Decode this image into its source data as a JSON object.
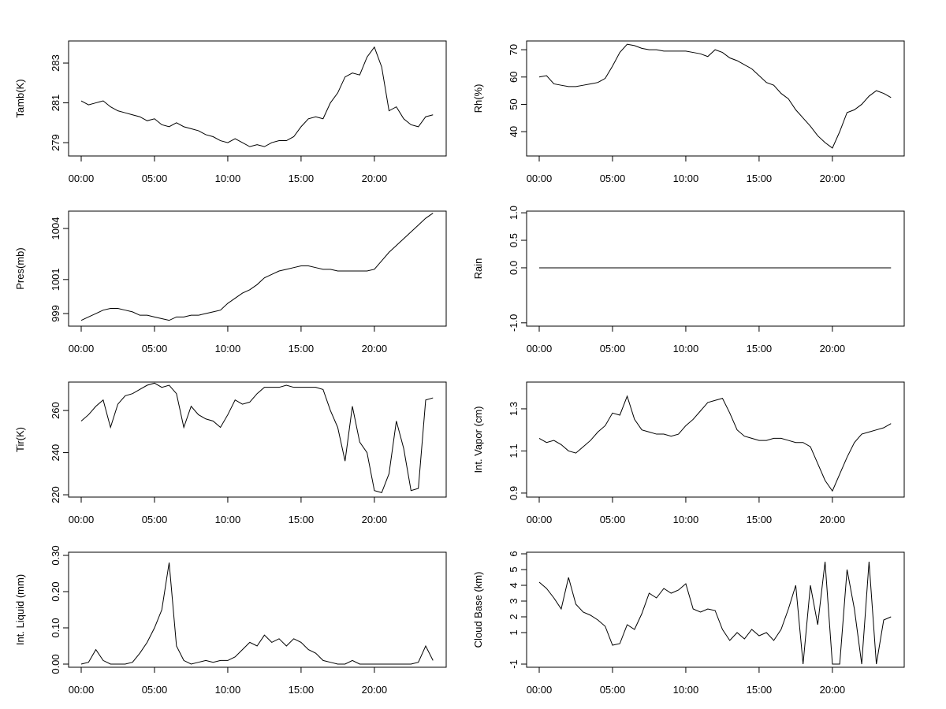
{
  "chart_data": [
    {
      "type": "line",
      "ylabel": "Tamb(K)",
      "color": "#000000",
      "x": [
        0,
        0.5,
        1,
        1.5,
        2,
        2.5,
        3,
        3.5,
        4,
        4.5,
        5,
        5.5,
        6,
        6.5,
        7,
        7.5,
        8,
        8.5,
        9,
        9.5,
        10,
        10.5,
        11,
        11.5,
        12,
        12.5,
        13,
        13.5,
        14,
        14.5,
        15,
        15.5,
        16,
        16.5,
        17,
        17.5,
        18,
        18.5,
        19,
        19.5,
        20,
        20.5,
        21,
        21.5,
        22,
        22.5,
        23,
        23.5,
        24
      ],
      "values": [
        281.1,
        280.9,
        281.0,
        281.1,
        280.8,
        280.6,
        280.5,
        280.4,
        280.3,
        280.1,
        280.2,
        279.9,
        279.8,
        280.0,
        279.8,
        279.7,
        279.6,
        279.4,
        279.3,
        279.1,
        279.0,
        279.2,
        279.0,
        278.8,
        278.9,
        278.8,
        279.0,
        279.1,
        279.1,
        279.3,
        279.8,
        280.2,
        280.3,
        280.2,
        281.0,
        281.5,
        282.3,
        282.5,
        282.4,
        283.3,
        283.8,
        282.8,
        280.6,
        280.8,
        280.2,
        279.9,
        279.8,
        280.3,
        280.4
      ],
      "xlim": [
        -0.86,
        24.9
      ],
      "ylim": [
        278.33,
        284.11
      ],
      "xticks": [
        {
          "value": 0,
          "label": "00:00"
        },
        {
          "value": 5,
          "label": "05:00"
        },
        {
          "value": 10,
          "label": "10:00"
        },
        {
          "value": 15,
          "label": "15:00"
        },
        {
          "value": 20,
          "label": "20:00"
        }
      ],
      "yticks": [
        279,
        281,
        283
      ]
    },
    {
      "type": "line",
      "ylabel": "Rh(%)",
      "color": "#000000",
      "x": [
        0,
        0.5,
        1,
        1.5,
        2,
        2.5,
        3,
        3.5,
        4,
        4.5,
        5,
        5.5,
        6,
        6.5,
        7,
        7.5,
        8,
        8.5,
        9,
        9.5,
        10,
        10.5,
        11,
        11.5,
        12,
        12.5,
        13,
        13.5,
        14,
        14.5,
        15,
        15.5,
        16,
        16.5,
        17,
        17.5,
        18,
        18.5,
        19,
        19.5,
        20,
        20.5,
        21,
        21.5,
        22,
        22.5,
        23,
        23.5,
        24
      ],
      "values": [
        60,
        60.5,
        57.5,
        57,
        56.5,
        56.5,
        57,
        57.5,
        58,
        59.5,
        64,
        69,
        72,
        71.5,
        70.5,
        70,
        70,
        69.5,
        69.5,
        69.5,
        69.5,
        69,
        68.5,
        67.5,
        70,
        69,
        67,
        66,
        64.5,
        63,
        60.5,
        58,
        57,
        54,
        52,
        48,
        45,
        42,
        38.5,
        36,
        34,
        40,
        47,
        48,
        50,
        53,
        55,
        54,
        52.5
      ],
      "xlim": [
        -0.86,
        24.9
      ],
      "ylim": [
        31.1,
        73.2
      ],
      "xticks": [
        {
          "value": 0,
          "label": "00:00"
        },
        {
          "value": 5,
          "label": "05:00"
        },
        {
          "value": 10,
          "label": "10:00"
        },
        {
          "value": 15,
          "label": "15:00"
        },
        {
          "value": 20,
          "label": "20:00"
        }
      ],
      "yticks": [
        40,
        50,
        60,
        70
      ]
    },
    {
      "type": "line",
      "ylabel": "Pres(mb)",
      "color": "#000000",
      "x": [
        0,
        0.5,
        1,
        1.5,
        2,
        2.5,
        3,
        3.5,
        4,
        4.5,
        5,
        5.5,
        6,
        6.5,
        7,
        7.5,
        8,
        8.5,
        9,
        9.5,
        10,
        10.5,
        11,
        11.5,
        12,
        12.5,
        13,
        13.5,
        14,
        14.5,
        15,
        15.5,
        16,
        16.5,
        17,
        17.5,
        18,
        18.5,
        19,
        19.5,
        20,
        20.5,
        21,
        21.5,
        22,
        22.5,
        23,
        23.5,
        24
      ],
      "values": [
        998.6,
        998.8,
        999.0,
        999.2,
        999.3,
        999.3,
        999.2,
        999.1,
        998.9,
        998.9,
        998.8,
        998.7,
        998.6,
        998.8,
        998.8,
        998.9,
        998.9,
        999.0,
        999.1,
        999.2,
        999.6,
        999.9,
        1000.2,
        1000.4,
        1000.7,
        1001.1,
        1001.3,
        1001.5,
        1001.6,
        1001.7,
        1001.8,
        1001.8,
        1001.7,
        1001.6,
        1001.6,
        1001.5,
        1001.5,
        1001.5,
        1001.5,
        1001.5,
        1001.6,
        1002.1,
        1002.6,
        1003.0,
        1003.4,
        1003.8,
        1004.2,
        1004.6,
        1004.9
      ],
      "xlim": [
        -0.86,
        24.9
      ],
      "ylim": [
        998.26,
        1005.02
      ],
      "xticks": [
        {
          "value": 0,
          "label": "00:00"
        },
        {
          "value": 5,
          "label": "05:00"
        },
        {
          "value": 10,
          "label": "10:00"
        },
        {
          "value": 15,
          "label": "15:00"
        },
        {
          "value": 20,
          "label": "20:00"
        }
      ],
      "yticks": [
        999,
        1001,
        1004
      ]
    },
    {
      "type": "line",
      "ylabel": "Rain",
      "color": "#000000",
      "x": [
        0,
        0.5,
        1,
        1.5,
        2,
        2.5,
        3,
        3.5,
        4,
        4.5,
        5,
        5.5,
        6,
        6.5,
        7,
        7.5,
        8,
        8.5,
        9,
        9.5,
        10,
        10.5,
        11,
        11.5,
        12,
        12.5,
        13,
        13.5,
        14,
        14.5,
        15,
        15.5,
        16,
        16.5,
        17,
        17.5,
        18,
        18.5,
        19,
        19.5,
        20,
        20.5,
        21,
        21.5,
        22,
        22.5,
        23,
        23.5,
        24
      ],
      "values": [
        0,
        0,
        0,
        0,
        0,
        0,
        0,
        0,
        0,
        0,
        0,
        0,
        0,
        0,
        0,
        0,
        0,
        0,
        0,
        0,
        0,
        0,
        0,
        0,
        0,
        0,
        0,
        0,
        0,
        0,
        0,
        0,
        0,
        0,
        0,
        0,
        0,
        0,
        0,
        0,
        0,
        0,
        0,
        0,
        0,
        0,
        0,
        0,
        0
      ],
      "xlim": [
        -0.86,
        24.9
      ],
      "ylim": [
        -1.06,
        1.03
      ],
      "xticks": [
        {
          "value": 0,
          "label": "00:00"
        },
        {
          "value": 5,
          "label": "05:00"
        },
        {
          "value": 10,
          "label": "10:00"
        },
        {
          "value": 15,
          "label": "15:00"
        },
        {
          "value": 20,
          "label": "20:00"
        }
      ],
      "yticks": [
        {
          "value": -1,
          "label": "-1.0"
        },
        {
          "value": 0,
          "label": "0.0"
        },
        {
          "value": 0.5,
          "label": "0.5"
        },
        {
          "value": 1,
          "label": "1.0"
        }
      ]
    },
    {
      "type": "line",
      "ylabel": "Tir(K)",
      "color": "#000000",
      "x": [
        0,
        0.5,
        1,
        1.5,
        2,
        2.5,
        3,
        3.5,
        4,
        4.5,
        5,
        5.5,
        6,
        6.5,
        7,
        7.5,
        8,
        8.5,
        9,
        9.5,
        10,
        10.5,
        11,
        11.5,
        12,
        12.5,
        13,
        13.5,
        14,
        14.5,
        15,
        15.5,
        16,
        16.5,
        17,
        17.5,
        18,
        18.5,
        19,
        19.5,
        20,
        20.5,
        21,
        21.5,
        22,
        22.5,
        23,
        23.5,
        24
      ],
      "values": [
        255,
        258,
        262,
        265,
        252,
        263,
        267,
        268,
        270,
        272,
        273,
        271,
        272,
        268,
        252,
        262,
        258,
        256,
        255,
        252,
        258,
        265,
        263,
        264,
        268,
        271,
        271,
        271,
        272,
        271,
        271,
        271,
        271,
        270,
        260,
        252,
        236,
        262,
        245,
        240,
        222,
        221,
        230,
        255,
        242,
        222,
        223,
        265,
        266
      ],
      "xlim": [
        -0.86,
        24.9
      ],
      "ylim": [
        218.9,
        273.5
      ],
      "xticks": [
        {
          "value": 0,
          "label": "00:00"
        },
        {
          "value": 5,
          "label": "05:00"
        },
        {
          "value": 10,
          "label": "10:00"
        },
        {
          "value": 15,
          "label": "15:00"
        },
        {
          "value": 20,
          "label": "20:00"
        }
      ],
      "yticks": [
        220,
        240,
        260
      ]
    },
    {
      "type": "line",
      "ylabel": "Int. Vapor (cm)",
      "color": "#000000",
      "x": [
        0,
        0.5,
        1,
        1.5,
        2,
        2.5,
        3,
        3.5,
        4,
        4.5,
        5,
        5.5,
        6,
        6.5,
        7,
        7.5,
        8,
        8.5,
        9,
        9.5,
        10,
        10.5,
        11,
        11.5,
        12,
        12.5,
        13,
        13.5,
        14,
        14.5,
        15,
        15.5,
        16,
        16.5,
        17,
        17.5,
        18,
        18.5,
        19,
        19.5,
        20,
        20.5,
        21,
        21.5,
        22,
        22.5,
        23,
        23.5,
        24
      ],
      "values": [
        1.16,
        1.14,
        1.15,
        1.13,
        1.1,
        1.09,
        1.12,
        1.15,
        1.19,
        1.22,
        1.28,
        1.27,
        1.36,
        1.25,
        1.2,
        1.19,
        1.18,
        1.18,
        1.17,
        1.18,
        1.22,
        1.25,
        1.29,
        1.33,
        1.34,
        1.35,
        1.28,
        1.2,
        1.17,
        1.16,
        1.15,
        1.15,
        1.16,
        1.16,
        1.15,
        1.14,
        1.14,
        1.12,
        1.04,
        0.96,
        0.91,
        0.99,
        1.07,
        1.14,
        1.18,
        1.19,
        1.2,
        1.21,
        1.23
      ],
      "xlim": [
        -0.86,
        24.9
      ],
      "ylim": [
        0.881,
        1.427
      ],
      "xticks": [
        {
          "value": 0,
          "label": "00:00"
        },
        {
          "value": 5,
          "label": "05:00"
        },
        {
          "value": 10,
          "label": "10:00"
        },
        {
          "value": 15,
          "label": "15:00"
        },
        {
          "value": 20,
          "label": "20:00"
        }
      ],
      "yticks": [
        0.9,
        1.1,
        1.3
      ]
    },
    {
      "type": "line",
      "ylabel": "Int. Liquid (mm)",
      "color": "#000000",
      "x": [
        0,
        0.5,
        1,
        1.5,
        2,
        2.5,
        3,
        3.5,
        4,
        4.5,
        5,
        5.5,
        6,
        6.5,
        7,
        7.5,
        8,
        8.5,
        9,
        9.5,
        10,
        10.5,
        11,
        11.5,
        12,
        12.5,
        13,
        13.5,
        14,
        14.5,
        15,
        15.5,
        16,
        16.5,
        17,
        17.5,
        18,
        18.5,
        19,
        19.5,
        20,
        20.5,
        21,
        21.5,
        22,
        22.5,
        23,
        23.5,
        24
      ],
      "values": [
        0,
        0.005,
        0.04,
        0.01,
        0,
        0,
        0,
        0.005,
        0.03,
        0.06,
        0.1,
        0.15,
        0.28,
        0.05,
        0.01,
        0,
        0.005,
        0.01,
        0.005,
        0.01,
        0.01,
        0.02,
        0.04,
        0.06,
        0.05,
        0.08,
        0.06,
        0.07,
        0.05,
        0.07,
        0.06,
        0.04,
        0.03,
        0.01,
        0.005,
        0,
        0,
        0.01,
        0,
        0,
        0,
        0,
        0,
        0,
        0,
        0,
        0.005,
        0.05,
        0.01
      ],
      "xlim": [
        -0.86,
        24.9
      ],
      "ylim": [
        -0.0087,
        0.3087
      ],
      "xticks": [
        {
          "value": 0,
          "label": "00:00"
        },
        {
          "value": 5,
          "label": "05:00"
        },
        {
          "value": 10,
          "label": "10:00"
        },
        {
          "value": 15,
          "label": "15:00"
        },
        {
          "value": 20,
          "label": "20:00"
        }
      ],
      "yticks": [
        {
          "value": 0,
          "label": "0.00"
        },
        {
          "value": 0.1,
          "label": "0.10"
        },
        {
          "value": 0.2,
          "label": "0.20"
        },
        {
          "value": 0.3,
          "label": "0.30"
        }
      ]
    },
    {
      "type": "line",
      "ylabel": "Cloud Base (km)",
      "color": "#000000",
      "x": [
        0,
        0.5,
        1,
        1.5,
        2,
        2.5,
        3,
        3.5,
        4,
        4.5,
        5,
        5.5,
        6,
        6.5,
        7,
        7.5,
        8,
        8.5,
        9,
        9.5,
        10,
        10.5,
        11,
        11.5,
        12,
        12.5,
        13,
        13.5,
        14,
        14.5,
        15,
        15.5,
        16,
        16.5,
        17,
        17.5,
        18,
        18.5,
        19,
        19.5,
        20,
        20.5,
        21,
        21.5,
        22,
        22.5,
        23,
        23.5,
        24
      ],
      "values": [
        4.2,
        3.8,
        3.2,
        2.5,
        4.5,
        2.8,
        2.3,
        2.1,
        1.8,
        1.4,
        0.2,
        0.3,
        1.5,
        1.2,
        2.2,
        3.5,
        3.2,
        3.8,
        3.5,
        3.7,
        4.1,
        2.5,
        2.3,
        2.5,
        2.4,
        1.2,
        0.5,
        1.0,
        0.6,
        1.2,
        0.8,
        1.0,
        0.5,
        1.2,
        2.5,
        4.0,
        -1,
        4.0,
        1.5,
        5.5,
        -1,
        -1,
        5,
        2.5,
        -1,
        5.5,
        -1,
        1.8,
        2.0
      ],
      "xlim": [
        -0.86,
        24.9
      ],
      "ylim": [
        -1.2,
        6.1
      ],
      "xticks": [
        {
          "value": 0,
          "label": "00:00"
        },
        {
          "value": 5,
          "label": "05:00"
        },
        {
          "value": 10,
          "label": "10:00"
        },
        {
          "value": 15,
          "label": "15:00"
        },
        {
          "value": 20,
          "label": "20:00"
        }
      ],
      "yticks": [
        -1,
        1,
        2,
        3,
        4,
        5,
        6
      ]
    }
  ]
}
